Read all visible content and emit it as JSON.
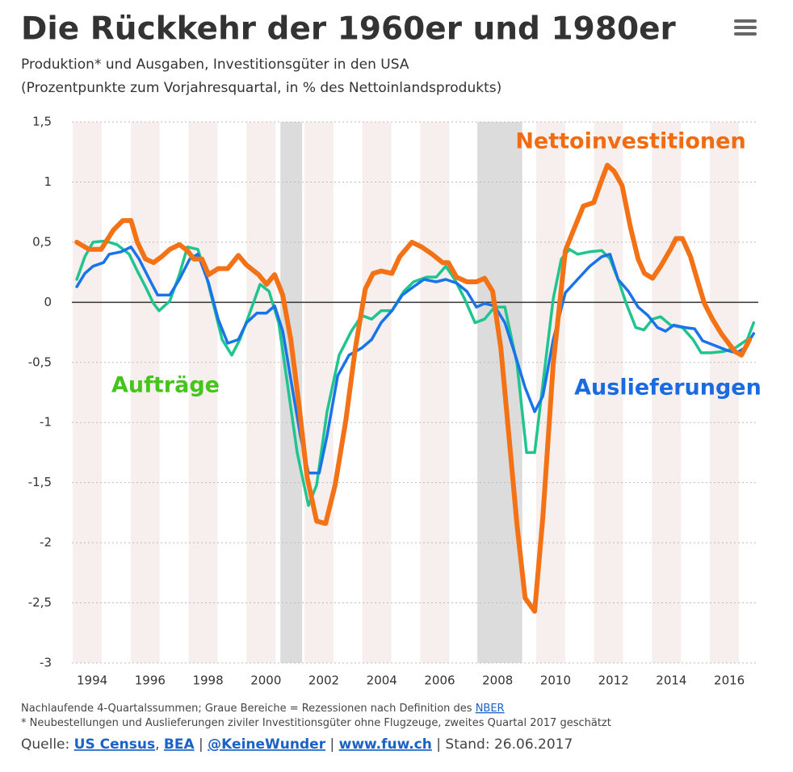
{
  "chart_data": {
    "type": "line",
    "title": "Die Rückkehr der 1960er und 1980er",
    "subtitle": [
      "Produktion* und Ausgaben, Investitionsgüter in den USA",
      "(Prozentpunkte zum Vorjahresquartal, in % des Nettoinlandsprodukts)"
    ],
    "xlim": [
      1993.3,
      2017.0
    ],
    "xticks": [
      1994,
      1996,
      1998,
      2000,
      2002,
      2004,
      2006,
      2008,
      2010,
      2012,
      2014,
      2016
    ],
    "ylim": [
      -3,
      1.5
    ],
    "yticks": [
      {
        "value": 1.5,
        "label": "1,5"
      },
      1,
      {
        "value": 0.5,
        "label": "0,5"
      },
      0,
      {
        "value": -0.5,
        "label": "-0,5"
      },
      -1,
      {
        "value": -1.5,
        "label": "-1,5"
      },
      -2,
      {
        "value": -2.5,
        "label": "-2,5"
      },
      -3
    ],
    "grid": true,
    "recessions": [
      [
        2000.5,
        2001.25
      ],
      [
        2007.3,
        2008.85
      ]
    ],
    "series": [
      {
        "name": "Aufträge",
        "color": "#1fc48f",
        "label_color": "#45c41c",
        "width": 3.5,
        "x": [
          1993.47,
          1993.75,
          1994.03,
          1994.45,
          1994.86,
          1995.28,
          1995.56,
          1995.84,
          1996.12,
          1996.31,
          1996.68,
          1997.01,
          1997.29,
          1997.65,
          1997.93,
          1998.21,
          1998.49,
          1998.82,
          1999.1,
          1999.47,
          1999.8,
          2000.11,
          2000.44,
          2000.72,
          2001.08,
          2001.47,
          2001.75,
          2002.11,
          2002.53,
          2002.95,
          2003.31,
          2003.65,
          2003.98,
          2004.35,
          2004.76,
          2005.1,
          2005.55,
          2005.88,
          2006.21,
          2006.52,
          2006.86,
          2007.22,
          2007.55,
          2007.89,
          2008.25,
          2008.67,
          2009.0,
          2009.28,
          2009.56,
          2009.92,
          2010.2,
          2010.48,
          2010.76,
          2011.18,
          2011.6,
          2011.88,
          2012.16,
          2012.44,
          2012.77,
          2013.05,
          2013.35,
          2013.63,
          2013.97,
          2014.38,
          2014.75,
          2015.03,
          2015.36,
          2015.78,
          2016.2,
          2016.62,
          2016.84
        ],
        "values": [
          0.19,
          0.38,
          0.5,
          0.51,
          0.48,
          0.4,
          0.26,
          0.13,
          -0.01,
          -0.07,
          0.01,
          0.23,
          0.46,
          0.44,
          0.23,
          -0.04,
          -0.31,
          -0.44,
          -0.31,
          -0.07,
          0.15,
          0.09,
          -0.17,
          -0.64,
          -1.25,
          -1.69,
          -1.52,
          -0.91,
          -0.44,
          -0.24,
          -0.11,
          -0.14,
          -0.07,
          -0.07,
          0.09,
          0.17,
          0.21,
          0.21,
          0.3,
          0.19,
          0.03,
          -0.17,
          -0.14,
          -0.04,
          -0.04,
          -0.51,
          -1.25,
          -1.25,
          -0.68,
          0.03,
          0.36,
          0.44,
          0.4,
          0.42,
          0.43,
          0.36,
          0.19,
          -0.01,
          -0.21,
          -0.23,
          -0.14,
          -0.12,
          -0.19,
          -0.21,
          -0.31,
          -0.42,
          -0.42,
          -0.41,
          -0.38,
          -0.31,
          -0.17
        ]
      },
      {
        "name": "Auslieferungen",
        "color": "#1a73e8",
        "label_color": "#1a6be0",
        "width": 3.5,
        "x": [
          1993.47,
          1993.75,
          1994.03,
          1994.39,
          1994.59,
          1995.0,
          1995.34,
          1995.62,
          1995.98,
          1996.26,
          1996.68,
          1997.01,
          1997.37,
          1997.65,
          1998.02,
          1998.35,
          1998.68,
          1999.05,
          1999.33,
          1999.69,
          2000.02,
          2000.3,
          2000.58,
          2000.86,
          2001.19,
          2001.47,
          2001.84,
          2002.11,
          2002.48,
          2002.87,
          2003.31,
          2003.65,
          2003.98,
          2004.35,
          2004.71,
          2005.1,
          2005.46,
          2005.88,
          2006.21,
          2006.58,
          2006.94,
          2007.27,
          2007.55,
          2007.89,
          2008.25,
          2008.61,
          2008.95,
          2009.28,
          2009.56,
          2009.92,
          2010.34,
          2010.76,
          2011.18,
          2011.6,
          2011.88,
          2012.16,
          2012.52,
          2012.85,
          2013.19,
          2013.52,
          2013.8,
          2014.08,
          2014.47,
          2014.8,
          2015.08,
          2015.5,
          2015.92,
          2016.25,
          2016.53,
          2016.84
        ],
        "values": [
          0.13,
          0.24,
          0.3,
          0.33,
          0.4,
          0.42,
          0.46,
          0.36,
          0.19,
          0.06,
          0.06,
          0.19,
          0.36,
          0.4,
          0.16,
          -0.14,
          -0.34,
          -0.31,
          -0.17,
          -0.09,
          -0.09,
          -0.03,
          -0.24,
          -0.64,
          -1.11,
          -1.42,
          -1.42,
          -1.11,
          -0.61,
          -0.44,
          -0.38,
          -0.31,
          -0.17,
          -0.07,
          0.06,
          0.13,
          0.19,
          0.17,
          0.19,
          0.16,
          0.09,
          -0.04,
          -0.01,
          -0.03,
          -0.17,
          -0.44,
          -0.71,
          -0.91,
          -0.78,
          -0.31,
          0.08,
          0.19,
          0.3,
          0.38,
          0.4,
          0.19,
          0.09,
          -0.04,
          -0.11,
          -0.21,
          -0.24,
          -0.19,
          -0.21,
          -0.22,
          -0.32,
          -0.36,
          -0.4,
          -0.42,
          -0.38,
          -0.26
        ]
      },
      {
        "name": "Nettoinvestitionen",
        "color": "#f47216",
        "label_color": "#f26b10",
        "width": 6,
        "x": [
          1993.47,
          1993.89,
          1994.31,
          1994.73,
          1995.06,
          1995.34,
          1995.56,
          1995.84,
          1996.12,
          1996.4,
          1996.68,
          1997.01,
          1997.29,
          1997.51,
          1997.79,
          1998.02,
          1998.35,
          1998.68,
          1999.05,
          1999.33,
          1999.75,
          2000.02,
          2000.3,
          2000.58,
          2000.86,
          2001.14,
          2001.42,
          2001.75,
          2002.06,
          2002.39,
          2002.76,
          2003.09,
          2003.43,
          2003.7,
          2003.98,
          2004.35,
          2004.62,
          2005.04,
          2005.38,
          2005.74,
          2006.1,
          2006.3,
          2006.58,
          2006.94,
          2007.27,
          2007.55,
          2007.83,
          2008.11,
          2008.39,
          2008.67,
          2008.95,
          2009.28,
          2009.56,
          2009.92,
          2010.34,
          2010.62,
          2010.96,
          2011.32,
          2011.6,
          2011.79,
          2012.02,
          2012.3,
          2012.58,
          2012.85,
          2013.07,
          2013.35,
          2013.63,
          2013.97,
          2014.16,
          2014.38,
          2014.66,
          2014.89,
          2015.14,
          2015.42,
          2015.72,
          2015.97,
          2016.2,
          2016.42,
          2016.7
        ],
        "values": [
          0.5,
          0.44,
          0.44,
          0.6,
          0.68,
          0.68,
          0.5,
          0.36,
          0.33,
          0.38,
          0.44,
          0.48,
          0.43,
          0.36,
          0.36,
          0.23,
          0.28,
          0.28,
          0.39,
          0.31,
          0.23,
          0.15,
          0.23,
          0.06,
          -0.31,
          -0.85,
          -1.45,
          -1.82,
          -1.84,
          -1.52,
          -0.98,
          -0.38,
          0.11,
          0.24,
          0.26,
          0.24,
          0.38,
          0.5,
          0.46,
          0.4,
          0.33,
          0.33,
          0.21,
          0.17,
          0.17,
          0.2,
          0.09,
          -0.38,
          -1.11,
          -1.85,
          -2.46,
          -2.57,
          -1.79,
          -0.51,
          0.43,
          0.6,
          0.8,
          0.83,
          1.02,
          1.14,
          1.09,
          0.97,
          0.63,
          0.36,
          0.24,
          0.2,
          0.3,
          0.44,
          0.53,
          0.53,
          0.38,
          0.19,
          -0.01,
          -0.14,
          -0.26,
          -0.34,
          -0.41,
          -0.44,
          -0.31
        ]
      }
    ],
    "notes": [
      [
        {
          "text": "Nachlaufende 4-Quartalssummen; Graue Bereiche = Rezessionen nach Definition des "
        },
        {
          "text": "NBER",
          "link": true
        }
      ],
      [
        {
          "text": "* Neubestellungen und Auslieferungen ziviler Investitionsgüter ohne Flugzeuge, zweites Quartal 2017 geschätzt"
        }
      ]
    ],
    "source": [
      {
        "text": "Quelle: "
      },
      {
        "text": "US Census",
        "link": true
      },
      {
        "text": ", "
      },
      {
        "text": "BEA",
        "link": true
      },
      {
        "text": " | "
      },
      {
        "text": "@KeineWunder",
        "link": true
      },
      {
        "text": " | "
      },
      {
        "text": "www.fuw.ch",
        "link": true
      },
      {
        "text": " | Stand: 26.06.2017"
      }
    ]
  }
}
